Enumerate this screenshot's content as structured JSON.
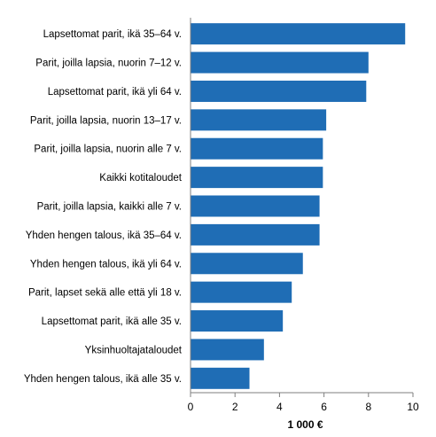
{
  "chart_data": {
    "type": "bar",
    "orientation": "horizontal",
    "categories": [
      "Lapsettomat parit, ikä 35–64 v.",
      "Parit, joilla lapsia, nuorin 7–12 v.",
      "Lapsettomat parit, ikä yli 64 v.",
      "Parit, joilla lapsia, nuorin 13–17 v.",
      "Parit, joilla lapsia, nuorin alle 7 v.",
      "Kaikki kotitaloudet",
      "Parit, joilla lapsia, kaikki alle 7 v.",
      "Yhden hengen talous, ikä 35–64 v.",
      "Yhden hengen talous, ikä yli 64 v.",
      "Parit, lapset sekä alle että yli 18 v.",
      "Lapsettomat parit, ikä alle 35 v.",
      "Yksinhuoltajataloudet",
      "Yhden hengen talous, ikä alle 35 v."
    ],
    "values": [
      9.65,
      8.0,
      7.9,
      6.1,
      5.95,
      5.95,
      5.8,
      5.8,
      5.05,
      4.55,
      4.15,
      3.3,
      2.65
    ],
    "xlabel": "1 000 €",
    "xlim": [
      0,
      10
    ],
    "xticks": [
      "0",
      "2",
      "4",
      "6",
      "8",
      "10"
    ],
    "grid": false,
    "legend": "none",
    "colors": {
      "bar": "#1f6db5",
      "axis": "#7f7f7f"
    }
  }
}
